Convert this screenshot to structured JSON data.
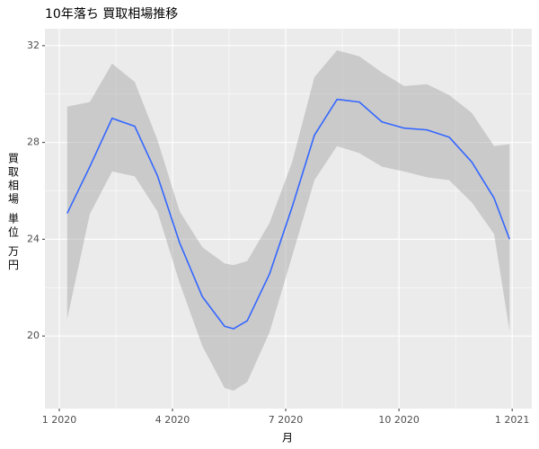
{
  "chart_data": {
    "type": "smooth",
    "title": "10年落ち 買取相場推移",
    "x_label": "月",
    "y_label": "買取相場 単位 万円",
    "x": [
      0.21,
      0.81,
      1.4,
      2.0,
      2.6,
      3.19,
      3.79,
      4.38,
      4.62,
      4.98,
      5.57,
      6.17,
      6.76,
      7.36,
      7.95,
      8.55,
      9.14,
      9.74,
      10.33,
      10.93,
      11.52,
      11.93
    ],
    "values": [
      25.07,
      27.0,
      29.0,
      28.67,
      26.63,
      23.85,
      21.63,
      20.4,
      20.3,
      20.63,
      22.56,
      25.33,
      28.3,
      29.78,
      29.67,
      28.85,
      28.59,
      28.52,
      28.22,
      27.19,
      25.7,
      24.0
    ],
    "upper": [
      29.48,
      29.67,
      31.26,
      30.5,
      28.11,
      25.15,
      23.67,
      23.0,
      22.93,
      23.1,
      24.67,
      27.19,
      30.7,
      31.81,
      31.56,
      30.89,
      30.33,
      30.41,
      29.96,
      29.22,
      27.85,
      27.93
    ],
    "lower": [
      20.7,
      25.04,
      26.8,
      26.6,
      25.15,
      22.19,
      19.59,
      17.85,
      17.74,
      18.1,
      20.15,
      23.3,
      26.44,
      27.85,
      27.56,
      27.0,
      26.8,
      26.56,
      26.44,
      25.52,
      24.22,
      20.22
    ],
    "color": "#3366ff",
    "band_color": "#999999",
    "xlim": [
      -0.38,
      12.52
    ],
    "xticks": [
      {
        "value": 0,
        "label": "1 2020"
      },
      {
        "value": 3,
        "label": "4 2020"
      },
      {
        "value": 6,
        "label": "7 2020"
      },
      {
        "value": 9,
        "label": "10 2020"
      },
      {
        "value": 12,
        "label": "1 2021"
      }
    ],
    "ylim": [
      17.0,
      32.7
    ],
    "yticks": [
      20,
      24,
      28,
      32
    ],
    "grid": true
  }
}
